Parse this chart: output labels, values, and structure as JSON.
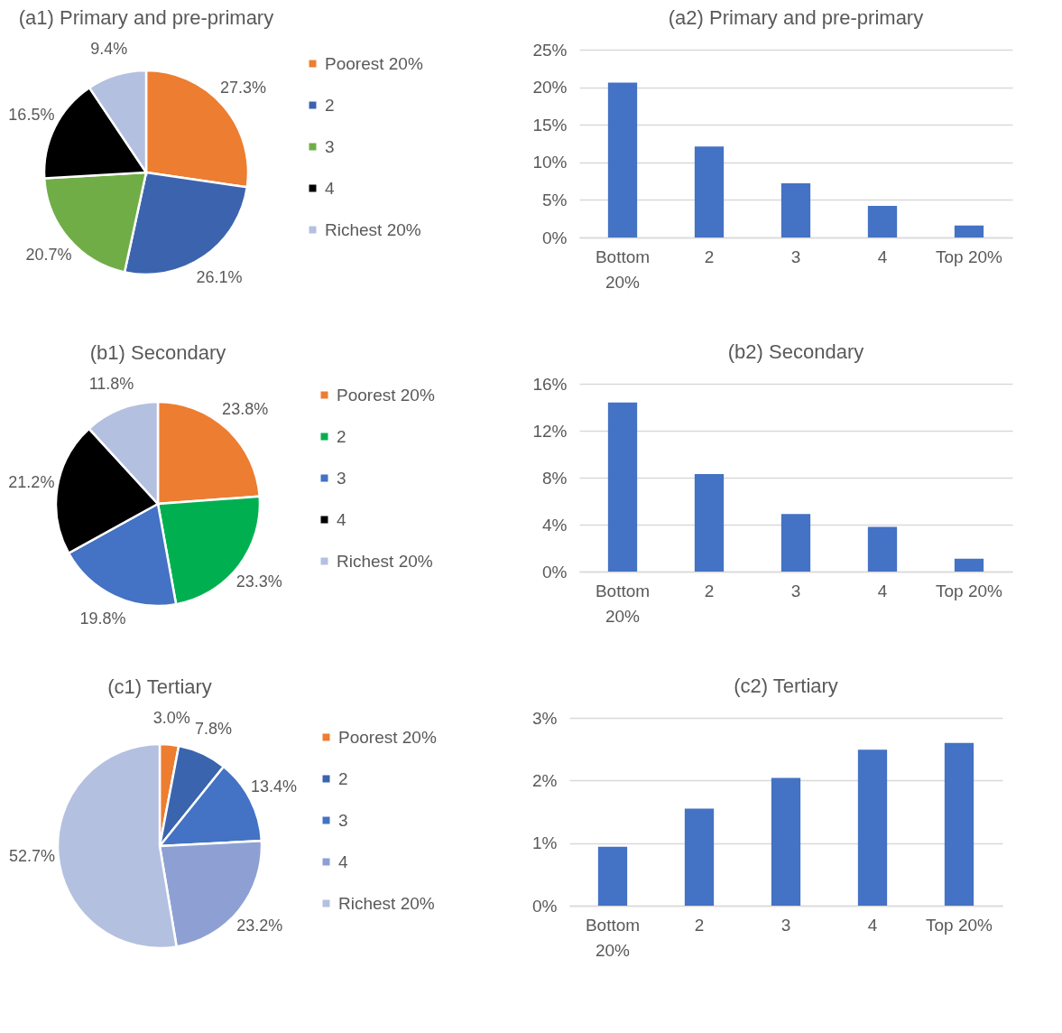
{
  "chart_data": [
    {
      "type": "pie",
      "title": "(a1) Primary and pre-primary",
      "categories": [
        "Poorest 20%",
        "2",
        "3",
        "4",
        "Richest 20%"
      ],
      "values": [
        27.3,
        26.1,
        20.7,
        16.5,
        9.4
      ],
      "colors": [
        "#ed7d31",
        "#3c64ae",
        "#70ad47",
        "#000000",
        "#b4c0e0"
      ],
      "value_labels": [
        "27.3%",
        "26.1%",
        "20.7%",
        "16.5%",
        "9.4%"
      ],
      "legend": "right"
    },
    {
      "type": "bar",
      "title": "(a2) Primary and pre-primary",
      "categories": [
        "Bottom 20%",
        "2",
        "3",
        "4",
        "Top 20%"
      ],
      "values": [
        20.6,
        12.1,
        7.2,
        4.2,
        1.6
      ],
      "color": "#4472c4",
      "ylim": [
        0,
        25
      ],
      "yticks": [
        {
          "value": 0,
          "label": "0%"
        },
        {
          "value": 5,
          "label": "5%"
        },
        {
          "value": 10,
          "label": "10%"
        },
        {
          "value": 15,
          "label": "15%"
        },
        {
          "value": 20,
          "label": "20%"
        },
        {
          "value": 25,
          "label": "25%"
        }
      ],
      "grid": "y"
    },
    {
      "type": "pie",
      "title": "(b1) Secondary",
      "categories": [
        "Poorest 20%",
        "2",
        "3",
        "4",
        "Richest 20%"
      ],
      "values": [
        23.8,
        23.3,
        19.8,
        21.2,
        11.8
      ],
      "colors": [
        "#ed7d31",
        "#00b050",
        "#4472c4",
        "#000000",
        "#b4c0e0"
      ],
      "value_labels": [
        "23.8%",
        "23.3%",
        "19.8%",
        "21.2%",
        "11.8%"
      ],
      "legend": "right"
    },
    {
      "type": "bar",
      "title": "(b2) Secondary",
      "categories": [
        "Bottom 20%",
        "2",
        "3",
        "4",
        "Top 20%"
      ],
      "values": [
        14.4,
        8.3,
        4.9,
        3.8,
        1.1
      ],
      "color": "#4472c4",
      "ylim": [
        0,
        16
      ],
      "yticks": [
        {
          "value": 0,
          "label": "0%"
        },
        {
          "value": 4,
          "label": "4%"
        },
        {
          "value": 8,
          "label": "8%"
        },
        {
          "value": 12,
          "label": "12%"
        },
        {
          "value": 16,
          "label": "16%"
        }
      ],
      "grid": "y"
    },
    {
      "type": "pie",
      "title": "(c1) Tertiary",
      "categories": [
        "Poorest 20%",
        "2",
        "3",
        "4",
        "Richest 20%"
      ],
      "values": [
        3.0,
        7.8,
        13.4,
        23.2,
        52.7
      ],
      "colors": [
        "#ed7d31",
        "#3a64ae",
        "#4472c4",
        "#8ea0d3",
        "#b4c0e0"
      ],
      "value_labels": [
        "3.0%",
        "7.8%",
        "13.4%",
        "23.2%",
        "52.7%"
      ],
      "legend": "right"
    },
    {
      "type": "bar",
      "title": "(c2) Tertiary",
      "categories": [
        "Bottom 20%",
        "2",
        "3",
        "4",
        "Top 20%"
      ],
      "values": [
        0.94,
        1.55,
        2.04,
        2.49,
        2.6
      ],
      "color": "#4472c4",
      "ylim": [
        0,
        3
      ],
      "yticks": [
        {
          "value": 0,
          "label": "0%"
        },
        {
          "value": 1,
          "label": "1%"
        },
        {
          "value": 2,
          "label": "2%"
        },
        {
          "value": 3,
          "label": "3%"
        }
      ],
      "grid": "y"
    }
  ]
}
